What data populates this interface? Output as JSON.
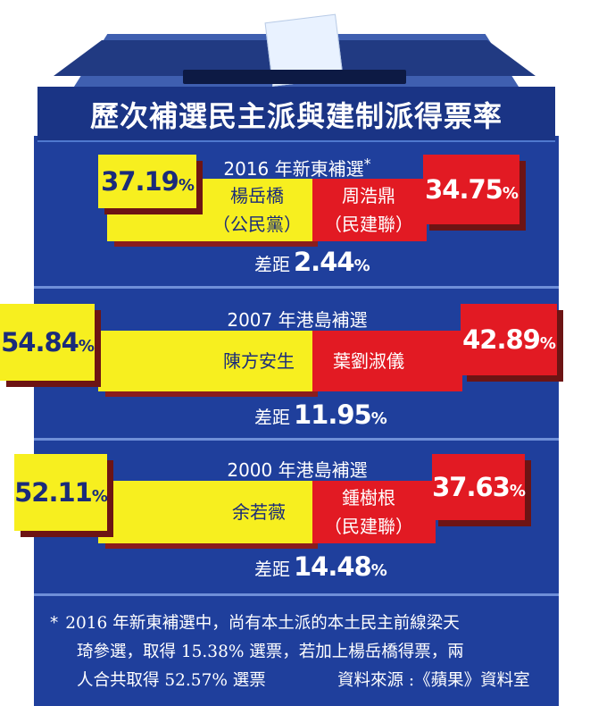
{
  "title": "歷次補選民主派與建制派得票率",
  "colors": {
    "pro_democracy": "#f7ef1f",
    "pro_establishment": "#e21a23",
    "background": "#1f3f9c"
  },
  "chart_data": {
    "type": "bar",
    "title": "歷次補選民主派與建制派得票率",
    "series": [
      {
        "name": "民主派",
        "values": [
          37.19,
          54.84,
          52.11
        ]
      },
      {
        "name": "建制派",
        "values": [
          34.75,
          42.89,
          37.63
        ]
      }
    ],
    "categories": [
      "2016 年新東補選*",
      "2007 年港島補選",
      "2000 年港島補選"
    ]
  },
  "elections": [
    {
      "title": "2016 年新東補選",
      "asterisk": "*",
      "pro_dem": {
        "name": "楊岳橋",
        "party": "（公民黨）",
        "pct": "37.19",
        "value": 37.19
      },
      "pro_est": {
        "name": "周浩鼎",
        "party": "（民建聯）",
        "pct": "34.75",
        "value": 34.75
      },
      "gap_label": "差距",
      "gap_value": "2.44"
    },
    {
      "title": "2007 年港島補選",
      "pro_dem": {
        "name": "陳方安生",
        "party": "",
        "pct": "54.84",
        "value": 54.84
      },
      "pro_est": {
        "name": "葉劉淑儀",
        "party": "",
        "pct": "42.89",
        "value": 42.89
      },
      "gap_label": "差距",
      "gap_value": "11.95"
    },
    {
      "title": "2000 年港島補選",
      "pro_dem": {
        "name": "余若薇",
        "party": "",
        "pct": "52.11",
        "value": 52.11
      },
      "pro_est": {
        "name": "鍾樹根",
        "party": "（民建聯）",
        "pct": "37.63",
        "value": 37.63
      },
      "gap_label": "差距",
      "gap_value": "14.48"
    }
  ],
  "percent_sign": "%",
  "note": {
    "star": "*",
    "line1": "2016 年新東補選中，尚有本土派的本土民主前線梁天",
    "line2": "琦參選，取得 15.38% 選票，若加上楊岳橋得票，兩",
    "line3": "人合共取得 52.57% 選票",
    "source": "資料來源 :《蘋果》資料室"
  }
}
